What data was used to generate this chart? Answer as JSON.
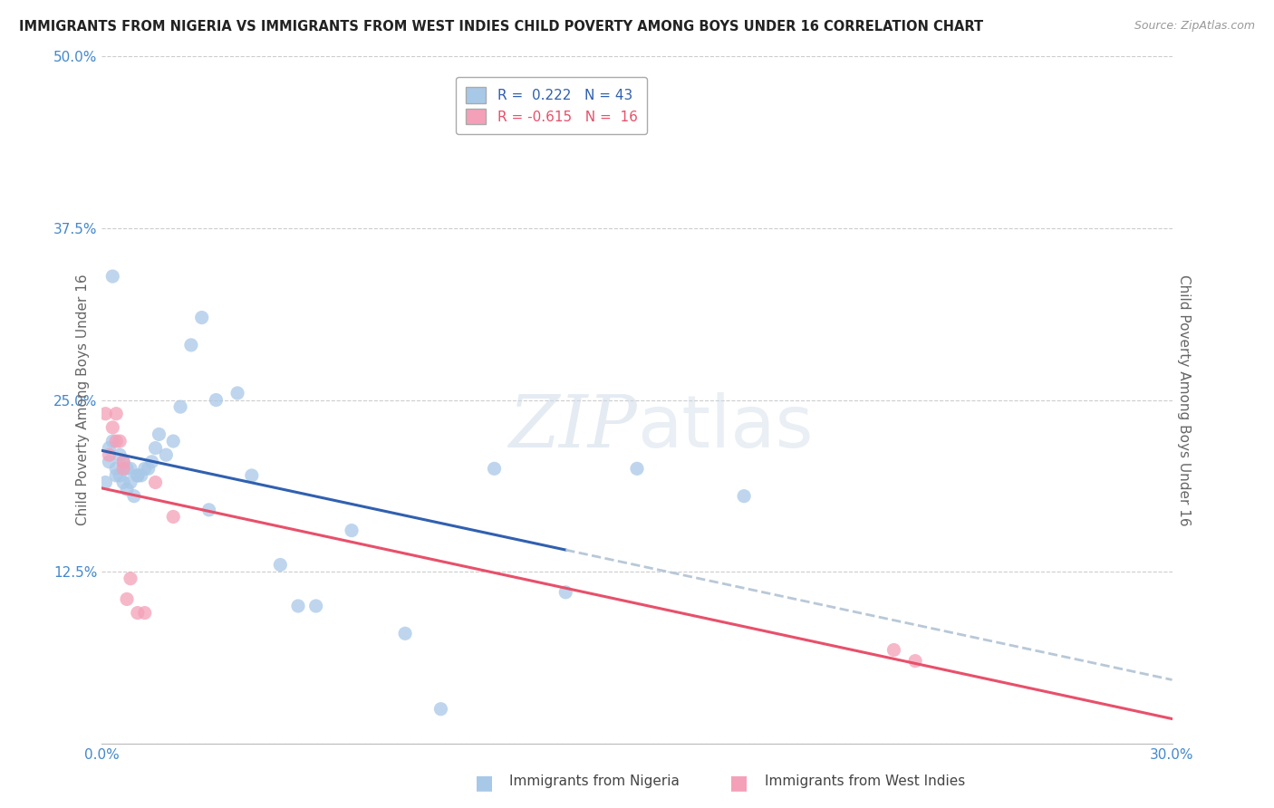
{
  "title": "IMMIGRANTS FROM NIGERIA VS IMMIGRANTS FROM WEST INDIES CHILD POVERTY AMONG BOYS UNDER 16 CORRELATION CHART",
  "source": "Source: ZipAtlas.com",
  "ylabel": "Child Poverty Among Boys Under 16",
  "xlim": [
    0.0,
    0.3
  ],
  "ylim": [
    0.0,
    0.5
  ],
  "xticks": [
    0.0,
    0.05,
    0.1,
    0.15,
    0.2,
    0.25,
    0.3
  ],
  "yticks": [
    0.0,
    0.125,
    0.25,
    0.375,
    0.5
  ],
  "xticklabels": [
    "0.0%",
    "",
    "",
    "",
    "",
    "",
    "30.0%"
  ],
  "yticklabels": [
    "",
    "12.5%",
    "25.0%",
    "37.5%",
    "50.0%"
  ],
  "nigeria_R": 0.222,
  "nigeria_N": 43,
  "westindies_R": -0.615,
  "westindies_N": 16,
  "nigeria_color": "#a8c8e8",
  "westindies_color": "#f4a0b8",
  "nigeria_line_color": "#3060b0",
  "westindies_line_color": "#e8506a",
  "trend_ext_color": "#b8c8d8",
  "watermark_color": "#d0dce8",
  "background_color": "#ffffff",
  "grid_color": "#cccccc",
  "nigeria_x": [
    0.001,
    0.002,
    0.002,
    0.003,
    0.003,
    0.004,
    0.004,
    0.005,
    0.005,
    0.006,
    0.006,
    0.007,
    0.007,
    0.008,
    0.008,
    0.009,
    0.01,
    0.01,
    0.011,
    0.012,
    0.013,
    0.014,
    0.015,
    0.016,
    0.018,
    0.02,
    0.022,
    0.025,
    0.028,
    0.032,
    0.038,
    0.042,
    0.05,
    0.06,
    0.07,
    0.085,
    0.095,
    0.11,
    0.13,
    0.15,
    0.18,
    0.055,
    0.03
  ],
  "nigeria_y": [
    0.19,
    0.205,
    0.215,
    0.22,
    0.34,
    0.195,
    0.2,
    0.21,
    0.195,
    0.205,
    0.19,
    0.2,
    0.185,
    0.19,
    0.2,
    0.18,
    0.195,
    0.195,
    0.195,
    0.2,
    0.2,
    0.205,
    0.215,
    0.225,
    0.21,
    0.22,
    0.245,
    0.29,
    0.31,
    0.25,
    0.255,
    0.195,
    0.13,
    0.1,
    0.155,
    0.08,
    0.025,
    0.2,
    0.11,
    0.2,
    0.18,
    0.1,
    0.17
  ],
  "westindies_x": [
    0.001,
    0.002,
    0.003,
    0.004,
    0.004,
    0.005,
    0.006,
    0.006,
    0.007,
    0.008,
    0.01,
    0.012,
    0.015,
    0.02,
    0.222,
    0.228
  ],
  "westindies_y": [
    0.24,
    0.21,
    0.23,
    0.24,
    0.22,
    0.22,
    0.2,
    0.205,
    0.105,
    0.12,
    0.095,
    0.095,
    0.19,
    0.165,
    0.068,
    0.06
  ]
}
